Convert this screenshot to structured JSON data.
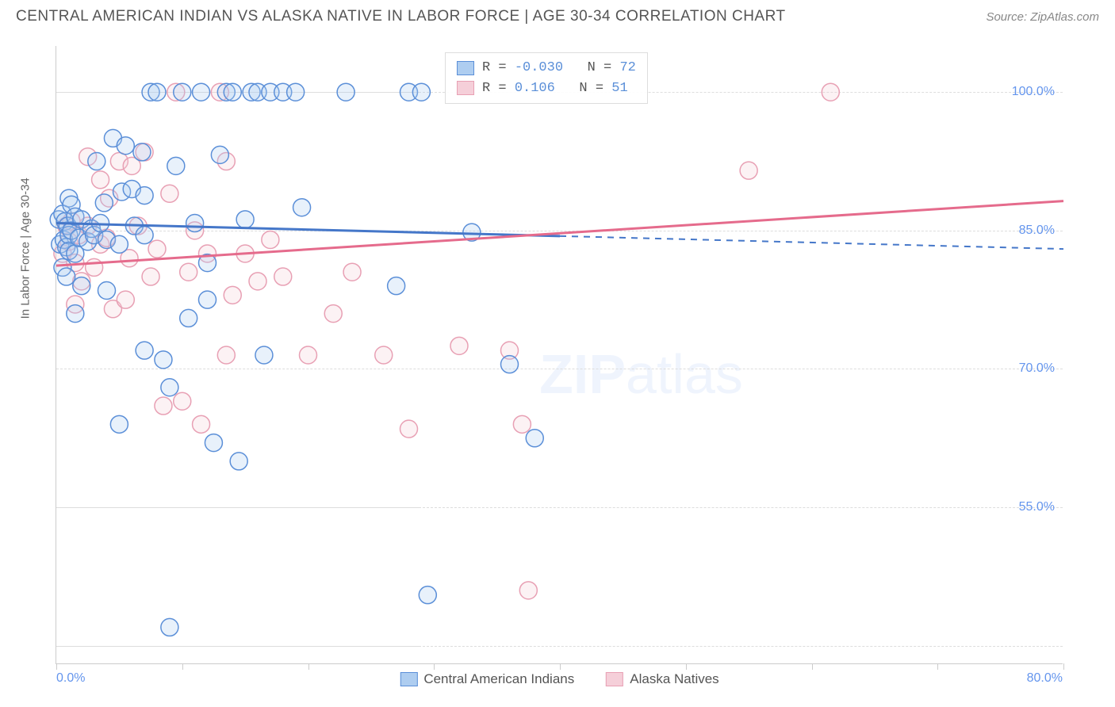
{
  "header": {
    "title": "CENTRAL AMERICAN INDIAN VS ALASKA NATIVE IN LABOR FORCE | AGE 30-34 CORRELATION CHART",
    "source": "Source: ZipAtlas.com"
  },
  "chart": {
    "type": "scatter",
    "yaxis_label": "In Labor Force | Age 30-34",
    "xlim": [
      0,
      80
    ],
    "ylim": [
      38,
      105
    ],
    "xticks": [
      0,
      10,
      20,
      30,
      40,
      50,
      60,
      70,
      80
    ],
    "xtick_labels": {
      "0": "0.0%",
      "80": "80.0%"
    },
    "yticks": [
      55,
      70,
      85,
      100
    ],
    "ytick_labels": [
      "55.0%",
      "70.0%",
      "85.0%",
      "100.0%"
    ],
    "grid_y_split": [
      40,
      55,
      100
    ],
    "grid_y_dashed": [
      70,
      85
    ],
    "background_color": "#ffffff",
    "grid_color": "#dddddd",
    "marker_radius": 11,
    "marker_fill_opacity": 0.28,
    "marker_stroke_width": 1.5,
    "trend_line_width": 3,
    "trend_solid_end_x": 40,
    "series": [
      {
        "name": "Central American Indians",
        "color_stroke": "#5b8fd8",
        "color_fill": "#aecdf0",
        "trend_color": "#4577c9",
        "R": "-0.030",
        "N": "72",
        "trend": {
          "y_at_x0": 85.8,
          "y_at_xmax": 83.0
        },
        "points": [
          [
            0.2,
            86.2
          ],
          [
            0.3,
            83.5
          ],
          [
            0.5,
            86.8
          ],
          [
            0.6,
            84.0
          ],
          [
            0.7,
            86.0
          ],
          [
            0.8,
            83.2
          ],
          [
            0.9,
            85.5
          ],
          [
            1.0,
            84.5
          ],
          [
            1.0,
            88.5
          ],
          [
            1.0,
            82.8
          ],
          [
            0.5,
            81.0
          ],
          [
            0.8,
            80.0
          ],
          [
            1.2,
            87.8
          ],
          [
            1.2,
            85.0
          ],
          [
            1.5,
            86.5
          ],
          [
            1.5,
            82.5
          ],
          [
            1.8,
            84.2
          ],
          [
            2.0,
            86.2
          ],
          [
            2.5,
            83.8
          ],
          [
            2.8,
            85.2
          ],
          [
            3.0,
            84.5
          ],
          [
            3.2,
            92.5
          ],
          [
            3.5,
            85.8
          ],
          [
            3.8,
            88.0
          ],
          [
            4.0,
            84.0
          ],
          [
            4.5,
            95.0
          ],
          [
            5.0,
            83.5
          ],
          [
            5.2,
            89.2
          ],
          [
            5.5,
            94.2
          ],
          [
            6.0,
            89.5
          ],
          [
            6.2,
            85.5
          ],
          [
            6.8,
            93.5
          ],
          [
            7.0,
            88.8
          ],
          [
            7.0,
            84.5
          ],
          [
            7.5,
            100.0
          ],
          [
            8.0,
            100.0
          ],
          [
            8.5,
            71.0
          ],
          [
            9.0,
            68.0
          ],
          [
            9.5,
            92.0
          ],
          [
            10.0,
            100.0
          ],
          [
            10.5,
            75.5
          ],
          [
            11.0,
            85.8
          ],
          [
            11.5,
            100.0
          ],
          [
            12.0,
            77.5
          ],
          [
            12.0,
            81.5
          ],
          [
            12.5,
            62.0
          ],
          [
            13.0,
            93.2
          ],
          [
            13.5,
            100.0
          ],
          [
            14.0,
            100.0
          ],
          [
            14.5,
            60.0
          ],
          [
            15.0,
            86.2
          ],
          [
            15.5,
            100.0
          ],
          [
            16.0,
            100.0
          ],
          [
            16.5,
            71.5
          ],
          [
            17.0,
            100.0
          ],
          [
            18.0,
            100.0
          ],
          [
            19.0,
            100.0
          ],
          [
            19.5,
            87.5
          ],
          [
            23.0,
            100.0
          ],
          [
            27.0,
            79.0
          ],
          [
            28.0,
            100.0
          ],
          [
            29.0,
            100.0
          ],
          [
            29.5,
            45.5
          ],
          [
            33.0,
            84.8
          ],
          [
            36.0,
            70.5
          ],
          [
            38.0,
            62.5
          ],
          [
            9.0,
            42.0
          ],
          [
            1.5,
            76.0
          ],
          [
            2.0,
            79.0
          ],
          [
            4.0,
            78.5
          ],
          [
            5.0,
            64.0
          ],
          [
            7.0,
            72.0
          ]
        ]
      },
      {
        "name": "Alaska Natives",
        "color_stroke": "#e8a0b4",
        "color_fill": "#f5cfd9",
        "trend_color": "#e56b8c",
        "R": "0.106",
        "N": "51",
        "trend": {
          "y_at_x0": 81.2,
          "y_at_xmax": 88.2
        },
        "points": [
          [
            0.5,
            82.5
          ],
          [
            0.8,
            85.5
          ],
          [
            1.0,
            83.8
          ],
          [
            1.2,
            86.0
          ],
          [
            1.5,
            81.5
          ],
          [
            1.5,
            77.0
          ],
          [
            1.8,
            84.5
          ],
          [
            2.0,
            79.5
          ],
          [
            2.5,
            85.5
          ],
          [
            2.5,
            93.0
          ],
          [
            3.0,
            81.0
          ],
          [
            3.5,
            90.5
          ],
          [
            3.5,
            83.5
          ],
          [
            4.0,
            84.2
          ],
          [
            4.2,
            88.5
          ],
          [
            4.5,
            76.5
          ],
          [
            5.0,
            92.5
          ],
          [
            5.5,
            77.5
          ],
          [
            5.8,
            82.0
          ],
          [
            6.0,
            92.0
          ],
          [
            6.5,
            85.5
          ],
          [
            7.0,
            93.5
          ],
          [
            7.5,
            80.0
          ],
          [
            8.0,
            83.0
          ],
          [
            8.5,
            66.0
          ],
          [
            9.0,
            89.0
          ],
          [
            9.5,
            100.0
          ],
          [
            10.0,
            66.5
          ],
          [
            10.5,
            80.5
          ],
          [
            11.0,
            85.0
          ],
          [
            11.5,
            64.0
          ],
          [
            12.0,
            82.5
          ],
          [
            13.0,
            100.0
          ],
          [
            13.5,
            92.5
          ],
          [
            14.0,
            78.0
          ],
          [
            15.0,
            82.5
          ],
          [
            13.5,
            71.5
          ],
          [
            17.0,
            84.0
          ],
          [
            18.0,
            80.0
          ],
          [
            20.0,
            71.5
          ],
          [
            22.0,
            76.0
          ],
          [
            23.5,
            80.5
          ],
          [
            26.0,
            71.5
          ],
          [
            28.0,
            63.5
          ],
          [
            32.0,
            72.5
          ],
          [
            36.0,
            72.0
          ],
          [
            37.0,
            64.0
          ],
          [
            37.5,
            46.0
          ],
          [
            55.0,
            91.5
          ],
          [
            61.5,
            100.0
          ],
          [
            16.0,
            79.5
          ]
        ]
      }
    ],
    "watermark": {
      "bold": "ZIP",
      "rest": "atlas"
    }
  },
  "bottom_legend": [
    {
      "label": "Central American Indians",
      "fill": "#aecdf0",
      "stroke": "#5b8fd8"
    },
    {
      "label": "Alaska Natives",
      "fill": "#f5cfd9",
      "stroke": "#e8a0b4"
    }
  ]
}
